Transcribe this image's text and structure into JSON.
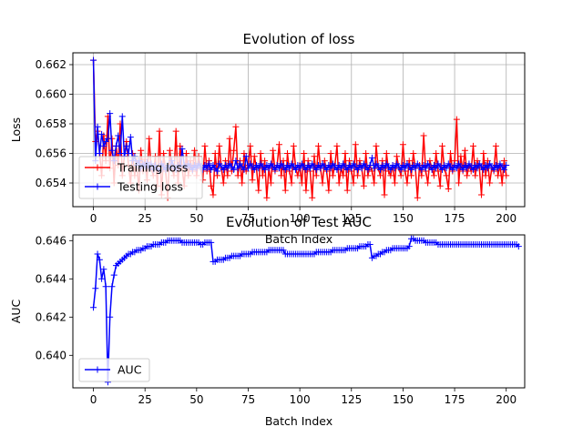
{
  "chart_data": [
    {
      "type": "line",
      "title": "Evolution of loss",
      "xlabel": "Batch Index",
      "ylabel": "Loss",
      "xlim": [
        -9.95,
        208.95
      ],
      "ylim": [
        0.6524,
        0.6628
      ],
      "xticks": [
        0,
        25,
        50,
        75,
        100,
        125,
        150,
        175,
        200
      ],
      "yticks": [
        0.654,
        0.656,
        0.658,
        0.66,
        0.662
      ],
      "ytick_labels": [
        "0.654",
        "0.656",
        "0.658",
        "0.660",
        "0.662"
      ],
      "grid": true,
      "legend_position": "lower-left",
      "series": [
        {
          "name": "Training loss",
          "color": "#ff0000",
          "marker": "+",
          "values": [
            0.6623,
            0.6568,
            0.6575,
            0.656,
            0.6545,
            0.6572,
            0.6555,
            0.6585,
            0.655,
            0.657,
            0.654,
            0.6565,
            0.6552,
            0.658,
            0.6545,
            0.6558,
            0.6568,
            0.6552,
            0.654,
            0.656,
            0.6545,
            0.6555,
            0.6535,
            0.6562,
            0.6548,
            0.6556,
            0.6542,
            0.657,
            0.655,
            0.6545,
            0.6558,
            0.6538,
            0.6575,
            0.6532,
            0.656,
            0.6548,
            0.653,
            0.6562,
            0.655,
            0.6545,
            0.6575,
            0.654,
            0.6565,
            0.655,
            0.6538,
            0.656,
            0.6545,
            0.6555,
            0.6548,
            0.6562,
            0.6545,
            0.6558,
            0.655,
            0.6542,
            0.6565,
            0.6548,
            0.6555,
            0.6538,
            0.6532,
            0.656,
            0.6545,
            0.6565,
            0.655,
            0.654,
            0.6555,
            0.6545,
            0.657,
            0.6548,
            0.6562,
            0.6578,
            0.6545,
            0.6555,
            0.654,
            0.656,
            0.6548,
            0.6552,
            0.6565,
            0.6542,
            0.6558,
            0.655,
            0.6535,
            0.656,
            0.6545,
            0.6555,
            0.653,
            0.655,
            0.654,
            0.6562,
            0.6548,
            0.6552,
            0.6566,
            0.6545,
            0.6555,
            0.6535,
            0.656,
            0.6548,
            0.654,
            0.6565,
            0.655,
            0.6545,
            0.6552,
            0.654,
            0.656,
            0.6535,
            0.6555,
            0.6548,
            0.653,
            0.6558,
            0.6545,
            0.6565,
            0.655,
            0.654,
            0.6555,
            0.6548,
            0.6535,
            0.656,
            0.6545,
            0.6552,
            0.6565,
            0.654,
            0.655,
            0.6545,
            0.656,
            0.6535,
            0.6555,
            0.6548,
            0.654,
            0.6566,
            0.6545,
            0.6555,
            0.655,
            0.6538,
            0.656,
            0.6545,
            0.6552,
            0.6548,
            0.654,
            0.6565,
            0.655,
            0.6545,
            0.6555,
            0.6532,
            0.656,
            0.6548,
            0.6545,
            0.6552,
            0.654,
            0.6558,
            0.655,
            0.6545,
            0.6566,
            0.6548,
            0.654,
            0.6555,
            0.6545,
            0.656,
            0.655,
            0.653,
            0.6552,
            0.6545,
            0.6572,
            0.6548,
            0.654,
            0.6555,
            0.655,
            0.6545,
            0.656,
            0.6548,
            0.6538,
            0.6565,
            0.655,
            0.6545,
            0.6536,
            0.656,
            0.6548,
            0.6555,
            0.6583,
            0.654,
            0.6558,
            0.6548,
            0.6562,
            0.6545,
            0.6552,
            0.6548,
            0.6565,
            0.6545,
            0.6555,
            0.655,
            0.6532,
            0.656,
            0.6545,
            0.6555,
            0.654,
            0.655,
            0.6548,
            0.6565,
            0.6545,
            0.6552,
            0.654,
            0.6555,
            0.6545
          ]
        },
        {
          "name": "Testing loss",
          "color": "#0000ff",
          "marker": "+",
          "values": [
            0.6623,
            0.6555,
            0.6578,
            0.656,
            0.6573,
            0.6565,
            0.6568,
            0.657,
            0.6587,
            0.6562,
            0.6555,
            0.6565,
            0.6572,
            0.656,
            0.6585,
            0.6558,
            0.6565,
            0.656,
            0.6571,
            0.6555,
            0.6558,
            0.6552,
            0.6555,
            0.655,
            0.6553,
            0.6551,
            0.6554,
            0.655,
            0.6553,
            0.6549,
            0.6552,
            0.655,
            0.6548,
            0.6553,
            0.6551,
            0.6549,
            0.6552,
            0.655,
            0.6555,
            0.6551,
            0.6549,
            0.6552,
            0.6551,
            0.6563,
            0.6552,
            0.655,
            0.6553,
            0.6551,
            0.6549,
            0.6552,
            0.655,
            0.6553,
            0.6551,
            0.6549,
            0.6552,
            0.655,
            0.6553,
            0.6549,
            0.6552,
            0.655,
            0.6548,
            0.6553,
            0.6551,
            0.6549,
            0.6552,
            0.655,
            0.6553,
            0.6551,
            0.6549,
            0.6555,
            0.655,
            0.6553,
            0.6551,
            0.6549,
            0.6558,
            0.655,
            0.6553,
            0.6551,
            0.6549,
            0.6552,
            0.655,
            0.6553,
            0.6551,
            0.6549,
            0.6552,
            0.655,
            0.6553,
            0.6551,
            0.6549,
            0.6552,
            0.655,
            0.6553,
            0.6551,
            0.6549,
            0.6552,
            0.655,
            0.6553,
            0.6551,
            0.6549,
            0.6552,
            0.655,
            0.6553,
            0.6551,
            0.6549,
            0.6552,
            0.655,
            0.6553,
            0.6551,
            0.6549,
            0.6552,
            0.655,
            0.6553,
            0.6551,
            0.6549,
            0.6552,
            0.655,
            0.6553,
            0.6551,
            0.6549,
            0.6552,
            0.655,
            0.6553,
            0.6551,
            0.6549,
            0.6552,
            0.655,
            0.6553,
            0.6551,
            0.6549,
            0.6552,
            0.655,
            0.6553,
            0.6551,
            0.6549,
            0.6552,
            0.6557,
            0.655,
            0.6553,
            0.6551,
            0.6549,
            0.6552,
            0.655,
            0.6553,
            0.6551,
            0.6549,
            0.6552,
            0.655,
            0.6553,
            0.6551,
            0.6549,
            0.6552,
            0.655,
            0.6553,
            0.6551,
            0.6549,
            0.6552,
            0.655,
            0.6553,
            0.6551,
            0.6549,
            0.6552,
            0.655,
            0.6553,
            0.6551,
            0.6549,
            0.6552,
            0.655,
            0.6553,
            0.6551,
            0.6549,
            0.6552,
            0.655,
            0.6553,
            0.6551,
            0.6549,
            0.6552,
            0.655,
            0.6553,
            0.6551,
            0.6549,
            0.6552,
            0.655,
            0.6553,
            0.6551,
            0.6549,
            0.6552,
            0.655,
            0.6553,
            0.6551,
            0.6549,
            0.6552,
            0.655,
            0.6553,
            0.6551,
            0.6549,
            0.6552,
            0.655,
            0.6553,
            0.6551,
            0.6549,
            0.6552
          ]
        }
      ]
    },
    {
      "type": "line",
      "title": "Evolution of Test AUC",
      "xlabel": "Batch Index",
      "ylabel": "AUC",
      "xlim": [
        -9.95,
        208.95
      ],
      "ylim": [
        0.6383,
        0.6463
      ],
      "xticks": [
        0,
        25,
        50,
        75,
        100,
        125,
        150,
        175,
        200
      ],
      "yticks": [
        0.64,
        0.642,
        0.644,
        0.646
      ],
      "ytick_labels": [
        "0.640",
        "0.642",
        "0.644",
        "0.646"
      ],
      "grid": false,
      "legend_position": "lower-left",
      "series": [
        {
          "name": "AUC",
          "color": "#0000ff",
          "marker": "+",
          "values": [
            0.6425,
            0.6435,
            0.6453,
            0.645,
            0.644,
            0.6445,
            0.6436,
            0.6386,
            0.642,
            0.6436,
            0.6442,
            0.6447,
            0.6448,
            0.6449,
            0.645,
            0.6451,
            0.6452,
            0.6453,
            0.6453,
            0.6454,
            0.6454,
            0.6455,
            0.6455,
            0.6455,
            0.6456,
            0.6456,
            0.6457,
            0.6457,
            0.6457,
            0.6458,
            0.6458,
            0.6458,
            0.6458,
            0.6459,
            0.6459,
            0.6459,
            0.646,
            0.646,
            0.646,
            0.646,
            0.646,
            0.646,
            0.646,
            0.6459,
            0.6459,
            0.6459,
            0.6459,
            0.6459,
            0.6459,
            0.6459,
            0.6459,
            0.6459,
            0.6458,
            0.6458,
            0.6459,
            0.6459,
            0.6459,
            0.6459,
            0.6449,
            0.6449,
            0.645,
            0.645,
            0.645,
            0.645,
            0.6451,
            0.6451,
            0.6451,
            0.6452,
            0.6452,
            0.6452,
            0.6452,
            0.6452,
            0.6453,
            0.6453,
            0.6453,
            0.6453,
            0.6453,
            0.6454,
            0.6454,
            0.6454,
            0.6454,
            0.6454,
            0.6454,
            0.6454,
            0.6454,
            0.6455,
            0.6455,
            0.6455,
            0.6455,
            0.6455,
            0.6455,
            0.6455,
            0.6455,
            0.6453,
            0.6453,
            0.6453,
            0.6453,
            0.6453,
            0.6453,
            0.6453,
            0.6453,
            0.6453,
            0.6453,
            0.6453,
            0.6453,
            0.6453,
            0.6453,
            0.6453,
            0.6454,
            0.6454,
            0.6454,
            0.6454,
            0.6454,
            0.6454,
            0.6454,
            0.6454,
            0.6455,
            0.6455,
            0.6455,
            0.6455,
            0.6455,
            0.6455,
            0.6455,
            0.6456,
            0.6456,
            0.6456,
            0.6456,
            0.6456,
            0.6456,
            0.6457,
            0.6457,
            0.6457,
            0.6457,
            0.6458,
            0.6458,
            0.6451,
            0.6452,
            0.6452,
            0.6453,
            0.6453,
            0.6454,
            0.6454,
            0.6455,
            0.6455,
            0.6455,
            0.6456,
            0.6456,
            0.6456,
            0.6456,
            0.6456,
            0.6456,
            0.6456,
            0.6456,
            0.6457,
            0.6461,
            0.6461,
            0.646,
            0.646,
            0.646,
            0.646,
            0.646,
            0.6459,
            0.6459,
            0.6459,
            0.6459,
            0.6459,
            0.6459,
            0.6458,
            0.6458,
            0.6458,
            0.6458,
            0.6458,
            0.6458,
            0.6458,
            0.6458,
            0.6458,
            0.6458,
            0.6458,
            0.6458,
            0.6458,
            0.6458,
            0.6458,
            0.6458,
            0.6458,
            0.6458,
            0.6458,
            0.6458,
            0.6458,
            0.6458,
            0.6458,
            0.6458,
            0.6458,
            0.6458,
            0.6458,
            0.6458,
            0.6458,
            0.6458,
            0.6458,
            0.6458,
            0.6458,
            0.6458,
            0.6458,
            0.6458,
            0.6458,
            0.6458,
            0.6458,
            0.6457
          ]
        }
      ]
    }
  ]
}
